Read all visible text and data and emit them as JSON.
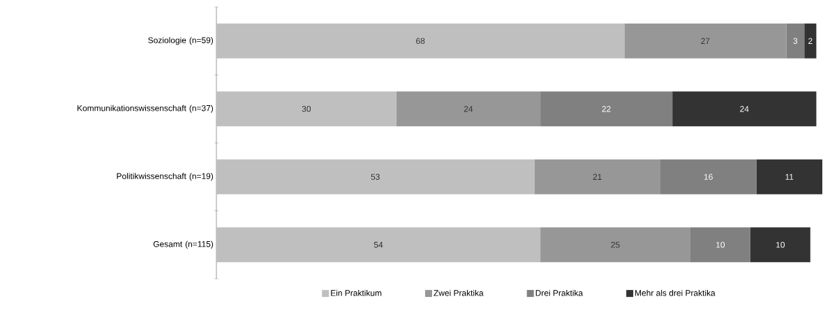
{
  "chart_data": {
    "type": "bar",
    "orientation": "horizontal",
    "stacked": true,
    "data_labels": true,
    "legend": "bottom",
    "categories": [
      "Soziologie (n=59)",
      "Kommunikationswissenschaft (n=37)",
      "Politikwissenschaft (n=19)",
      "Gesamt (n=115)"
    ],
    "series": [
      {
        "name": "Ein Praktikum",
        "color": "#bfbfbf",
        "values": [
          68,
          30,
          53,
          54
        ]
      },
      {
        "name": "Zwei Praktika",
        "color": "#979797",
        "values": [
          27,
          24,
          21,
          25
        ]
      },
      {
        "name": "Drei Praktika",
        "color": "#808080",
        "values": [
          3,
          22,
          16,
          10
        ]
      },
      {
        "name": "Mehr als drei Praktika",
        "color": "#333333",
        "values": [
          2,
          24,
          11,
          10
        ]
      }
    ]
  }
}
